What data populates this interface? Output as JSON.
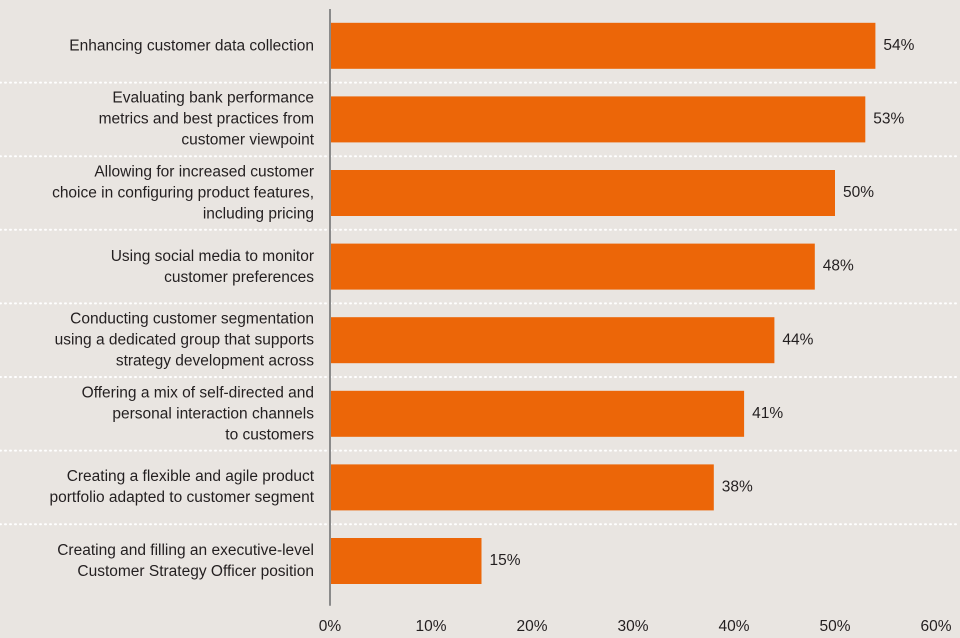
{
  "chart_data": {
    "type": "bar",
    "orientation": "horizontal",
    "categories": [
      "Enhancing customer data collection",
      "Evaluating bank performance\nmetrics and best practices from\ncustomer viewpoint",
      "Allowing for increased customer\nchoice in configuring product features,\nincluding pricing",
      "Using social media to monitor\ncustomer preferences",
      "Conducting customer segmentation\nusing a dedicated group that supports\nstrategy development across",
      "Offering a mix of self-directed and\npersonal interaction channels\nto customers",
      "Creating a flexible and agile product\nportfolio adapted to customer segment",
      "Creating and filling an executive-level\nCustomer Strategy Officer position"
    ],
    "values": [
      54,
      53,
      50,
      48,
      44,
      41,
      38,
      15
    ],
    "value_labels": [
      "54%",
      "53%",
      "50%",
      "48%",
      "44%",
      "41%",
      "38%",
      "15%"
    ],
    "color": "#ec6608",
    "xlim": [
      0,
      60
    ],
    "xticks": [
      {
        "value": 0,
        "label": "0%"
      },
      {
        "value": 10,
        "label": "10%"
      },
      {
        "value": 20,
        "label": "20%"
      },
      {
        "value": 30,
        "label": "30%"
      },
      {
        "value": 40,
        "label": "40%"
      },
      {
        "value": 50,
        "label": "50%"
      },
      {
        "value": 60,
        "label": "60%"
      }
    ]
  }
}
